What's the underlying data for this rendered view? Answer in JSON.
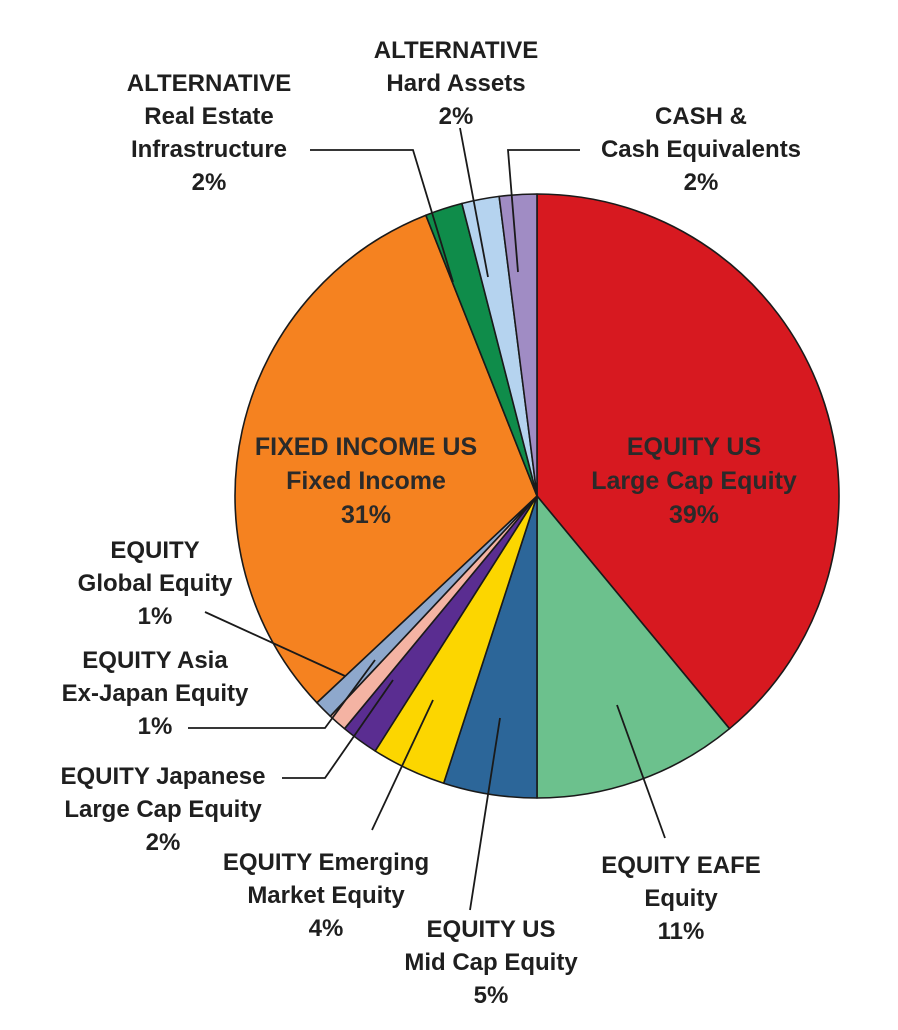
{
  "chart_data": {
    "type": "pie",
    "title": "",
    "start_angle_deg": 0,
    "direction": "clockwise",
    "slices": [
      {
        "group": "EQUITY US",
        "name": "Large Cap Equity",
        "value": 39,
        "value_label": "39%",
        "color": "#d71920"
      },
      {
        "group": "EQUITY EAFE",
        "name": "Equity",
        "value": 11,
        "value_label": "11%",
        "color": "#6cc18d"
      },
      {
        "group": "EQUITY US",
        "name": "Mid Cap Equity",
        "value": 5,
        "value_label": "5%",
        "color": "#2c6699"
      },
      {
        "group": "EQUITY Emerging",
        "name": "Market Equity",
        "value": 4,
        "value_label": "4%",
        "color": "#fcd600"
      },
      {
        "group": "EQUITY Japanese",
        "name": "Large Cap Equity",
        "value": 2,
        "value_label": "2%",
        "color": "#5a2d91"
      },
      {
        "group": "EQUITY Asia",
        "name": "Ex-Japan Equity",
        "value": 1,
        "value_label": "1%",
        "color": "#f4b3a3"
      },
      {
        "group": "EQUITY",
        "name": "Global Equity",
        "value": 1,
        "value_label": "1%",
        "color": "#8ea8cc"
      },
      {
        "group": "FIXED INCOME US",
        "name": "Fixed Income",
        "value": 31,
        "value_label": "31%",
        "color": "#f58220"
      },
      {
        "group": "ALTERNATIVE",
        "name": "Real Estate Infrastructure",
        "value": 2,
        "value_label": "2%",
        "color": "#0f8c4a"
      },
      {
        "group": "ALTERNATIVE",
        "name": "Hard Assets",
        "value": 2,
        "value_label": "2%",
        "color": "#b5d3ef"
      },
      {
        "group": "CASH &",
        "name": "Cash Equivalents",
        "value": 2,
        "value_label": "2%",
        "color": "#a08cc4"
      }
    ]
  },
  "labels": {
    "equity_us_large": [
      "EQUITY US",
      "Large Cap Equity",
      "39%"
    ],
    "equity_eafe": [
      "EQUITY EAFE",
      "Equity",
      "11%"
    ],
    "equity_us_mid": [
      "EQUITY US",
      "Mid Cap Equity",
      "5%"
    ],
    "equity_emerging": [
      "EQUITY Emerging",
      "Market Equity",
      "4%"
    ],
    "equity_japanese": [
      "EQUITY Japanese",
      "Large Cap Equity",
      "2%"
    ],
    "equity_asia": [
      "EQUITY Asia",
      "Ex-Japan Equity",
      "1%"
    ],
    "equity_global": [
      "EQUITY",
      "Global Equity",
      "1%"
    ],
    "fixed_income": [
      "FIXED INCOME US",
      "Fixed Income",
      "31%"
    ],
    "alt_real_estate": [
      "ALTERNATIVE",
      "Real Estate",
      "Infrastructure",
      "2%"
    ],
    "alt_hard_assets": [
      "ALTERNATIVE",
      "Hard Assets",
      "2%"
    ],
    "cash": [
      "CASH &",
      "Cash Equivalents",
      "2%"
    ]
  }
}
